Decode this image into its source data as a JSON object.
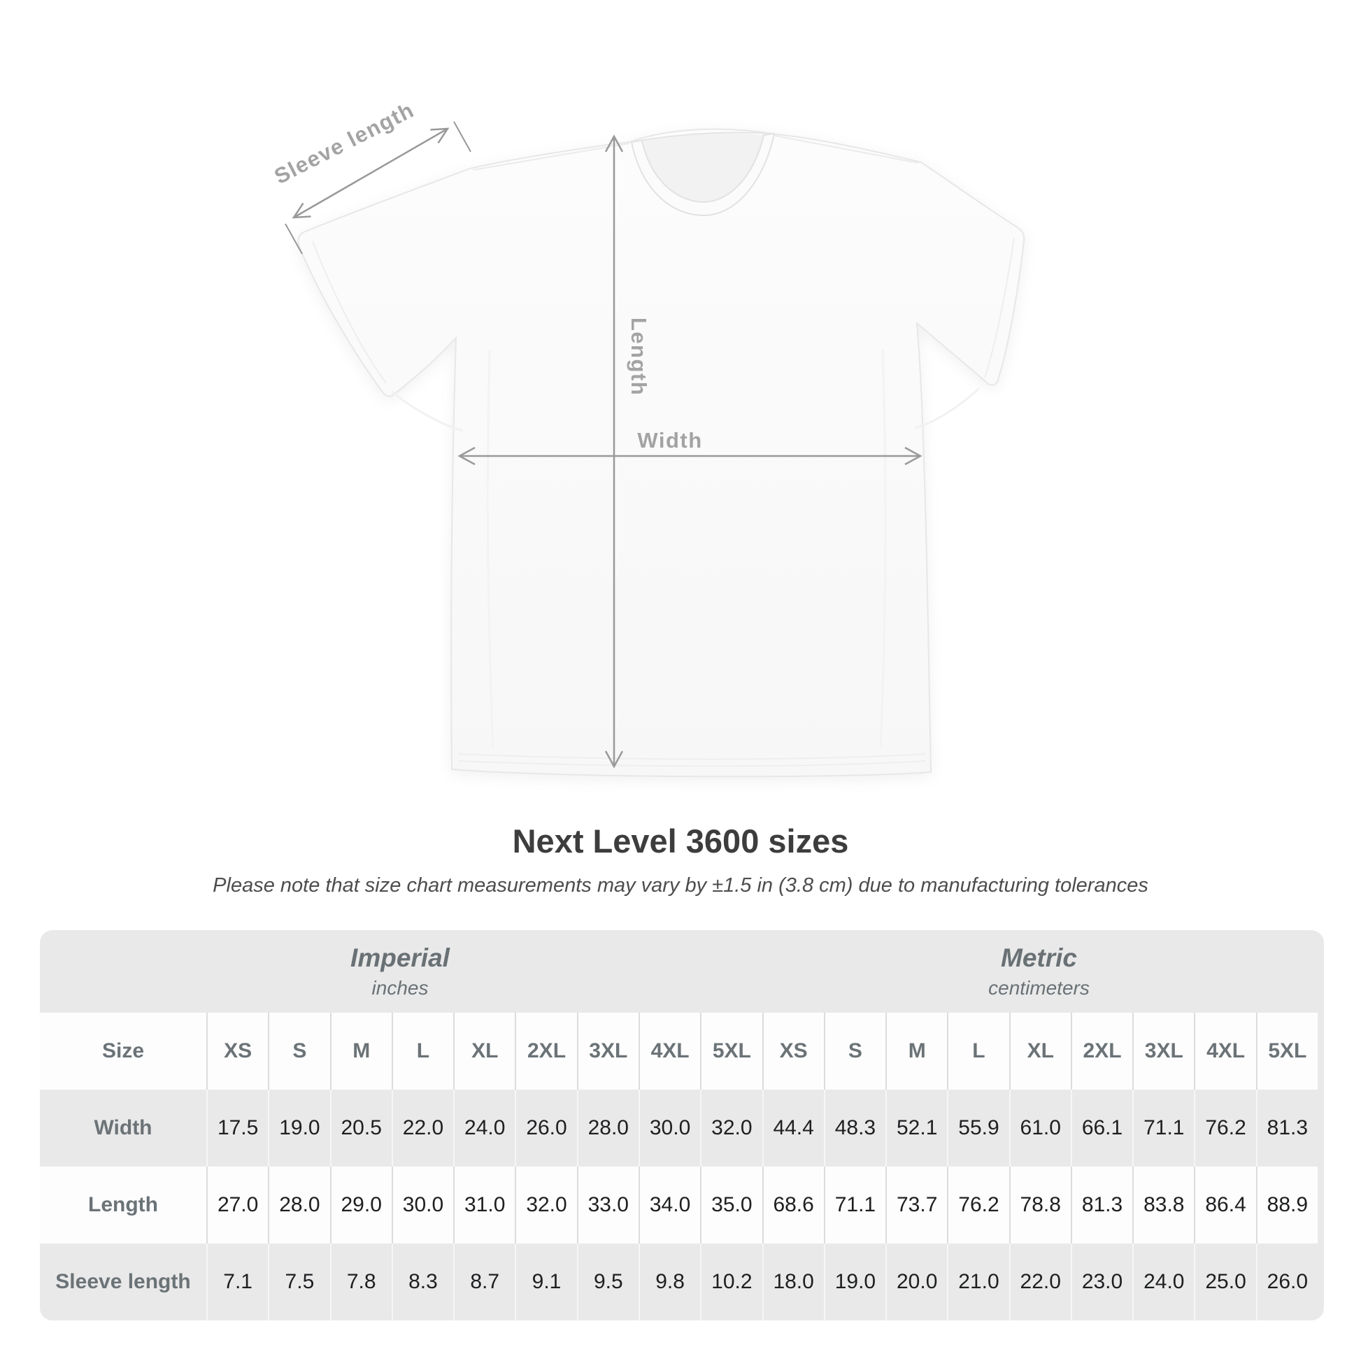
{
  "title": "Next Level 3600 sizes",
  "subtitle": "Please note that size chart measurements may vary by ±1.5 in (3.8 cm) due to manufacturing tolerances",
  "diagram": {
    "labels": {
      "sleeve": "Sleeve length",
      "length": "Length",
      "width": "Width"
    },
    "arrow_color": "#999999",
    "label_color": "#a3a3a3",
    "shirt_color": "#fafafa"
  },
  "table": {
    "size_header_label": "Size",
    "sizes": [
      "XS",
      "S",
      "M",
      "L",
      "XL",
      "2XL",
      "3XL",
      "4XL",
      "5XL"
    ],
    "unit_groups": [
      {
        "name": "Imperial",
        "unit": "inches"
      },
      {
        "name": "Metric",
        "unit": "centimeters"
      }
    ],
    "rows": [
      {
        "label": "Width",
        "imperial": [
          "17.5",
          "19.0",
          "20.5",
          "22.0",
          "24.0",
          "26.0",
          "28.0",
          "30.0",
          "32.0"
        ],
        "metric": [
          "44.4",
          "48.3",
          "52.1",
          "55.9",
          "61.0",
          "66.1",
          "71.1",
          "76.2",
          "81.3"
        ]
      },
      {
        "label": "Length",
        "imperial": [
          "27.0",
          "28.0",
          "29.0",
          "30.0",
          "31.0",
          "32.0",
          "33.0",
          "34.0",
          "35.0"
        ],
        "metric": [
          "68.6",
          "71.1",
          "73.7",
          "76.2",
          "78.8",
          "81.3",
          "83.8",
          "86.4",
          "88.9"
        ]
      },
      {
        "label": "Sleeve length",
        "imperial": [
          "7.1",
          "7.5",
          "7.8",
          "8.3",
          "8.7",
          "9.1",
          "9.5",
          "9.8",
          "10.2"
        ],
        "metric": [
          "18.0",
          "19.0",
          "20.0",
          "21.0",
          "22.0",
          "23.0",
          "24.0",
          "25.0",
          "26.0"
        ]
      }
    ],
    "colors": {
      "container": "#e9e9e9",
      "row_white": "#fdfdfd",
      "header_text": "#6b7377",
      "value_text": "#1e1f21"
    }
  }
}
